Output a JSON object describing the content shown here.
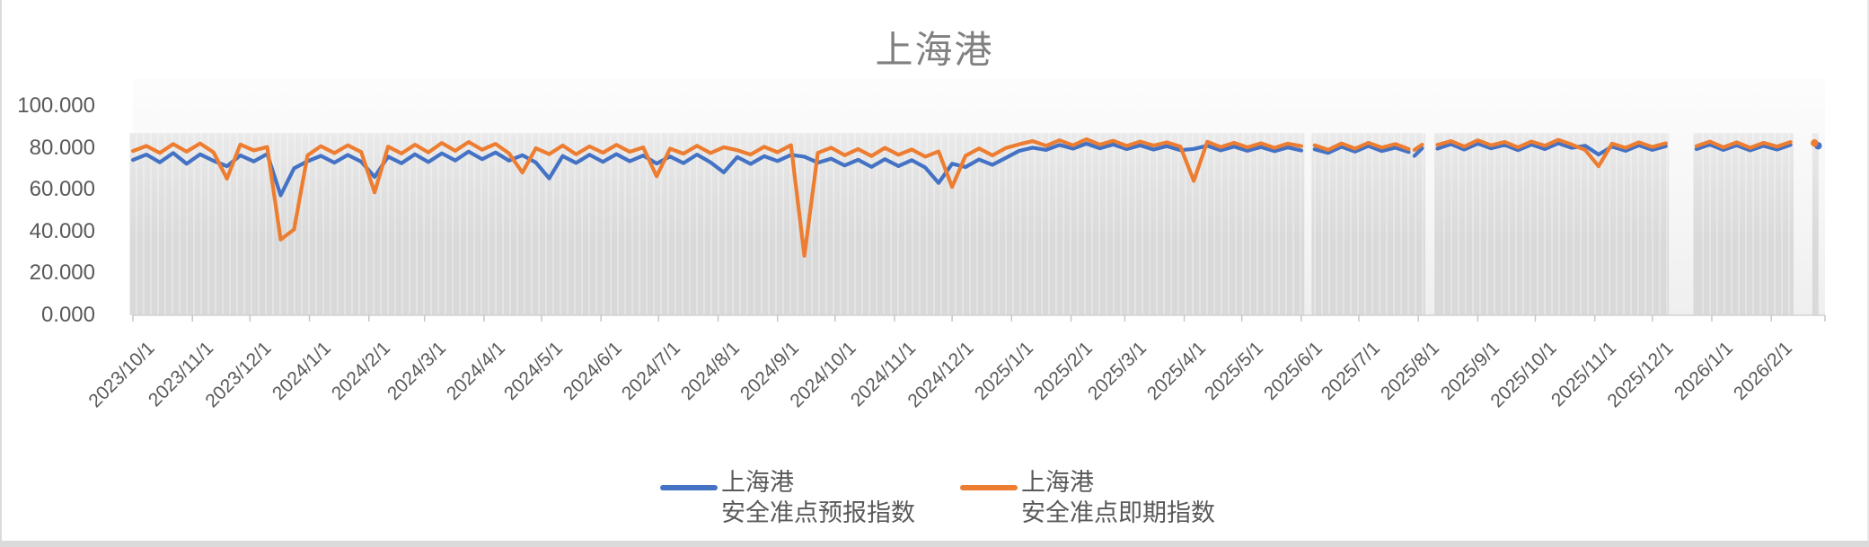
{
  "title": "上海港",
  "colors": {
    "forecast_line": "#4472C4",
    "spot_line": "#ED7D31",
    "band_fill": "#D9D9D9",
    "band_stripe": "#ECECEC",
    "axis_line": "#D2D2D2",
    "tick_mark": "#C6C6C6",
    "title_text": "#808080",
    "axis_text": "#595959"
  },
  "y_axis": {
    "ticks": [
      {
        "label": "100.000",
        "value": 100
      },
      {
        "label": "80.000",
        "value": 80
      },
      {
        "label": "60.000",
        "value": 60
      },
      {
        "label": "40.000",
        "value": 40
      },
      {
        "label": "20.000",
        "value": 20
      },
      {
        "label": "0.000",
        "value": 0
      }
    ]
  },
  "x_axis": {
    "labels": [
      "2023/10/1",
      "2023/11/1",
      "2023/12/1",
      "2024/1/1",
      "2024/2/1",
      "2024/3/1",
      "2024/4/1",
      "2024/5/1",
      "2024/6/1",
      "2024/7/1",
      "2024/8/1",
      "2024/9/1",
      "2024/10/1",
      "2024/11/1",
      "2024/12/1",
      "2025/1/1",
      "2025/2/1",
      "2025/3/1",
      "2025/4/1",
      "2025/5/1",
      "2025/6/1",
      "2025/7/1",
      "2025/8/1",
      "2025/9/1",
      "2025/10/1",
      "2025/11/1",
      "2025/12/1",
      "2026/1/1",
      "2026/2/1"
    ],
    "axis_start": "2023-10-01",
    "axis_end": "2026-03-01"
  },
  "legend": {
    "items": [
      {
        "line1": "上海港",
        "line2": "安全准点预报指数",
        "color": "#4472C4"
      },
      {
        "line1": "上海港",
        "line2": "安全准点即期指数",
        "color": "#ED7D31"
      }
    ]
  },
  "chart_data": {
    "type": "line",
    "title": "上海港",
    "ylim": [
      0,
      100
    ],
    "band_value": 87,
    "legend_position": "bottom",
    "series": [
      {
        "key": "forecast",
        "name": "上海港 安全准点预报指数",
        "color": "#4472C4"
      },
      {
        "key": "spot",
        "name": "上海港 安全准点即期指数",
        "color": "#ED7D31"
      }
    ],
    "segments": [
      {
        "start": "2023-10-01",
        "step_days": 7,
        "forecast": [
          74.2,
          76.8,
          73.1,
          77.5,
          72.4,
          76.9,
          73.8,
          71.2,
          76.4,
          73.5,
          77.1,
          57.3,
          70.2,
          73.6,
          76.2,
          72.9,
          76.6,
          73.4,
          66.1,
          75.8,
          72.6,
          76.9,
          73.2,
          77.4,
          74.0,
          78.2,
          74.6,
          77.8,
          73.9,
          76.5,
          73.0,
          65.4,
          76.1,
          72.8,
          76.7,
          73.3,
          77.0,
          73.6,
          76.3,
          72.5,
          75.9,
          72.7,
          76.8,
          73.1,
          68.3,
          75.6,
          72.3,
          76.0,
          73.7,
          76.6,
          75.8,
          72.9,
          74.8,
          71.6,
          74.3,
          70.9,
          74.6,
          71.3,
          74.1,
          70.6,
          63.2,
          72.4,
          70.8,
          74.4,
          71.9,
          75.2,
          78.6,
          80.1,
          79.0,
          81.4,
          79.6,
          82.0,
          79.8,
          81.6,
          79.4,
          81.2,
          79.2,
          80.8,
          78.9,
          79.5,
          81.0,
          78.8,
          80.6,
          78.6,
          80.4,
          78.4,
          80.2,
          78.7
        ],
        "spot": [
          78.5,
          80.9,
          77.6,
          81.8,
          78.2,
          82.1,
          77.9,
          65.3,
          81.6,
          78.8,
          80.4,
          36.2,
          41.0,
          76.4,
          80.8,
          77.5,
          81.2,
          78.0,
          58.7,
          80.6,
          77.3,
          81.5,
          77.8,
          82.3,
          78.6,
          82.8,
          79.1,
          81.9,
          77.4,
          68.2,
          79.8,
          77.0,
          81.1,
          76.9,
          80.7,
          77.7,
          81.4,
          78.1,
          80.2,
          66.4,
          79.6,
          77.2,
          81.0,
          77.5,
          80.3,
          78.9,
          76.8,
          80.5,
          77.9,
          81.3,
          28.4,
          77.6,
          80.1,
          76.5,
          79.4,
          76.1,
          80.0,
          76.7,
          79.2,
          75.8,
          78.3,
          61.3,
          76.2,
          79.7,
          76.4,
          79.9,
          81.7,
          83.2,
          81.0,
          83.6,
          81.2,
          84.1,
          81.5,
          83.4,
          80.9,
          83.0,
          81.1,
          82.6,
          80.6,
          64.2,
          82.9,
          80.4,
          82.4,
          80.2,
          82.2,
          80.0,
          82.0,
          80.8
        ]
      },
      {
        "start": "2025-06-08",
        "step_days": 7,
        "forecast": [
          79.3,
          77.6,
          80.5,
          78.2,
          80.9,
          78.5,
          80.1,
          78.0
        ],
        "spot": [
          81.2,
          79.0,
          82.1,
          79.6,
          82.4,
          80.1,
          81.8,
          79.4
        ]
      },
      {
        "start": "2025-07-30",
        "step_days": 4,
        "forecast": [
          76.2,
          79.8
        ],
        "spot": [
          79.0,
          81.5
        ]
      },
      {
        "start": "2025-08-11",
        "step_days": 7,
        "forecast": [
          79.6,
          81.8,
          79.2,
          82.0,
          79.8,
          81.4,
          78.9,
          81.6,
          79.4,
          82.2,
          80.0,
          81.0,
          76.8,
          80.6,
          78.6,
          81.2,
          79.0,
          80.8
        ],
        "spot": [
          81.4,
          83.2,
          80.6,
          83.6,
          81.2,
          82.8,
          80.2,
          83.0,
          81.0,
          83.8,
          81.6,
          79.0,
          71.2,
          82.0,
          80.0,
          82.6,
          80.4,
          82.2
        ]
      },
      {
        "start": "2025-12-24",
        "step_days": 7,
        "forecast": [
          79.4,
          81.6,
          79.0,
          81.2,
          78.8,
          81.0,
          79.2,
          81.4
        ],
        "spot": [
          80.8,
          83.0,
          80.2,
          82.6,
          80.0,
          82.4,
          80.6,
          82.8
        ]
      },
      {
        "start": "2026-02-24",
        "step_days": 7,
        "forecast": [
          81.0
        ],
        "spot": [
          82.3
        ]
      }
    ]
  }
}
